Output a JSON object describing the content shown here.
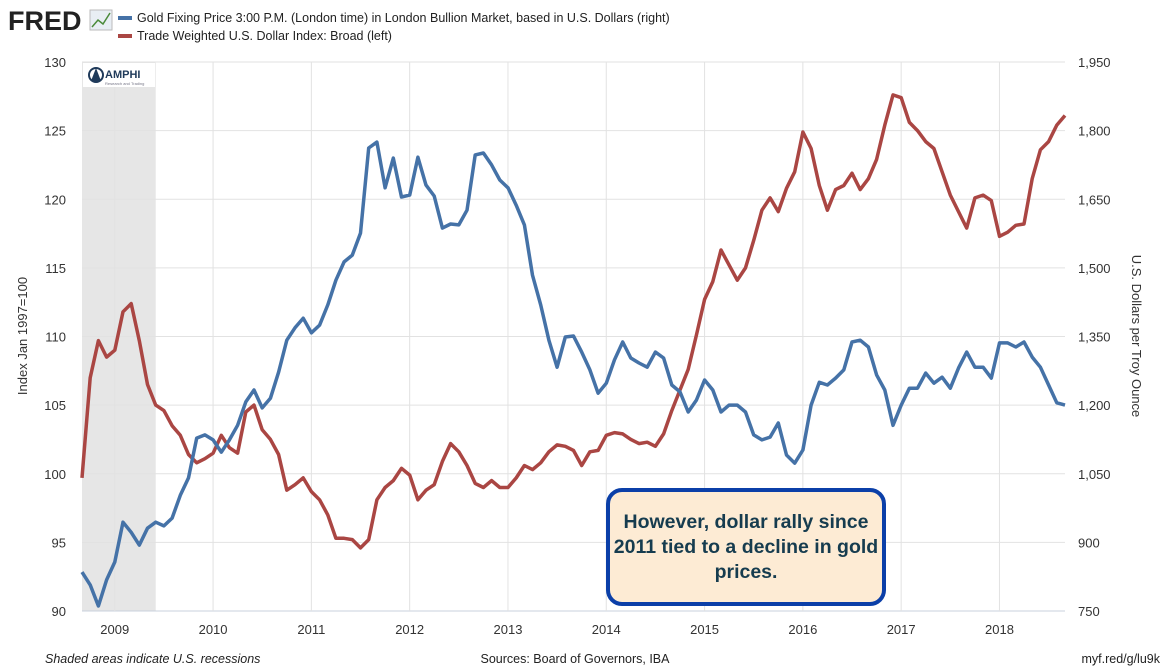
{
  "header": {
    "brand": "FRED",
    "brand_icon": "line-chart-icon"
  },
  "logo": {
    "name": "AMPHI",
    "subtitle": "Research and Trading"
  },
  "annotation": "However, dollar rally since 2011 tied to a decline in gold prices.",
  "footer": {
    "left": "Shaded areas indicate U.S. recessions",
    "center": "Sources: Board of Governors, IBA",
    "right": "myf.red/g/lu9k"
  },
  "colors": {
    "gold": "#4572a7",
    "dollar": "#aa4643",
    "recession": "#e6e6e6",
    "note_border": "#0b3fa8",
    "note_fill": "#fdebd4"
  },
  "chart_data": {
    "type": "line",
    "x_start": "2008-09",
    "x_end": "2018-09",
    "frequency": "monthly",
    "x_ticks": [
      "2009",
      "2010",
      "2011",
      "2012",
      "2013",
      "2014",
      "2015",
      "2016",
      "2017",
      "2018"
    ],
    "ylabel_left": "Index Jan 1997=100",
    "ylabel_right": "U.S. Dollars per Troy Ounce",
    "ylim_left": [
      90,
      130
    ],
    "ylim_right": [
      750,
      1950
    ],
    "yticks_left": [
      "90",
      "95",
      "100",
      "105",
      "110",
      "115",
      "120",
      "125",
      "130"
    ],
    "yticks_right": [
      "750",
      "900",
      "1,050",
      "1,200",
      "1,350",
      "1,500",
      "1,650",
      "1,800",
      "1,950"
    ],
    "grid": true,
    "legend_placement": "top-left",
    "recessions": [
      [
        "2008-09",
        "2009-06"
      ]
    ],
    "series": [
      {
        "name": "Gold Fixing Price 3:00 P.M. (London time) in London Bullion Market, based in U.S. Dollars (right)",
        "axis": "right",
        "color": "#4572a7",
        "values": [
          835,
          807,
          761,
          818,
          857,
          944,
          922,
          894,
          931,
          944,
          936,
          953,
          1003,
          1041,
          1128,
          1135,
          1124,
          1097,
          1124,
          1156,
          1207,
          1233,
          1194,
          1215,
          1272,
          1342,
          1369,
          1390,
          1358,
          1375,
          1419,
          1473,
          1513,
          1528,
          1576,
          1762,
          1775,
          1675,
          1740,
          1655,
          1659,
          1742,
          1681,
          1657,
          1587,
          1596,
          1594,
          1626,
          1747,
          1751,
          1725,
          1692,
          1675,
          1637,
          1594,
          1484,
          1419,
          1342,
          1283,
          1349,
          1351,
          1316,
          1277,
          1226,
          1248,
          1299,
          1338,
          1303,
          1292,
          1283,
          1316,
          1303,
          1244,
          1229,
          1185,
          1211,
          1255,
          1233,
          1185,
          1200,
          1200,
          1185,
          1135,
          1124,
          1130,
          1161,
          1091,
          1073,
          1102,
          1200,
          1250,
          1244,
          1259,
          1277,
          1338,
          1342,
          1327,
          1266,
          1233,
          1156,
          1200,
          1237,
          1237,
          1270,
          1248,
          1261,
          1237,
          1281,
          1316,
          1283,
          1283,
          1259,
          1336,
          1336,
          1327,
          1338,
          1305,
          1283,
          1244,
          1205,
          1200
        ]
      },
      {
        "name": "Trade Weighted U.S. Dollar Index: Broad (left)",
        "axis": "left",
        "color": "#aa4643",
        "values": [
          99.7,
          107,
          109.7,
          108.5,
          109,
          111.8,
          112.4,
          109.7,
          106.5,
          105,
          104.6,
          103.5,
          102.8,
          101.4,
          100.8,
          101.1,
          101.5,
          102.8,
          101.9,
          101.5,
          104.5,
          105,
          103.2,
          102.5,
          101.4,
          98.8,
          99.2,
          99.7,
          98.7,
          98.1,
          97,
          95.3,
          95.3,
          95.2,
          94.6,
          95.2,
          98.1,
          99,
          99.5,
          100.4,
          99.9,
          98.1,
          98.8,
          99.2,
          100.9,
          102.2,
          101.6,
          100.6,
          99.3,
          99,
          99.5,
          99,
          99,
          99.7,
          100.6,
          100.3,
          100.8,
          101.6,
          102.1,
          102,
          101.7,
          100.6,
          101.6,
          101.7,
          102.8,
          103,
          102.9,
          102.5,
          102.2,
          102.3,
          102,
          102.9,
          104.6,
          106.1,
          107.6,
          110.1,
          112.7,
          114,
          116.3,
          115.2,
          114.1,
          115,
          117,
          119.2,
          120.1,
          119.1,
          120.8,
          122,
          124.9,
          123.7,
          121,
          119.2,
          120.7,
          121,
          121.9,
          120.7,
          121.5,
          122.9,
          125.4,
          127.6,
          127.4,
          125.6,
          125,
          124.2,
          123.7,
          122,
          120.3,
          119.1,
          117.9,
          120.1,
          120.3,
          119.9,
          117.3,
          117.6,
          118.1,
          118.2,
          121.5,
          123.6,
          124.2,
          125.4,
          126.1
        ]
      }
    ]
  }
}
